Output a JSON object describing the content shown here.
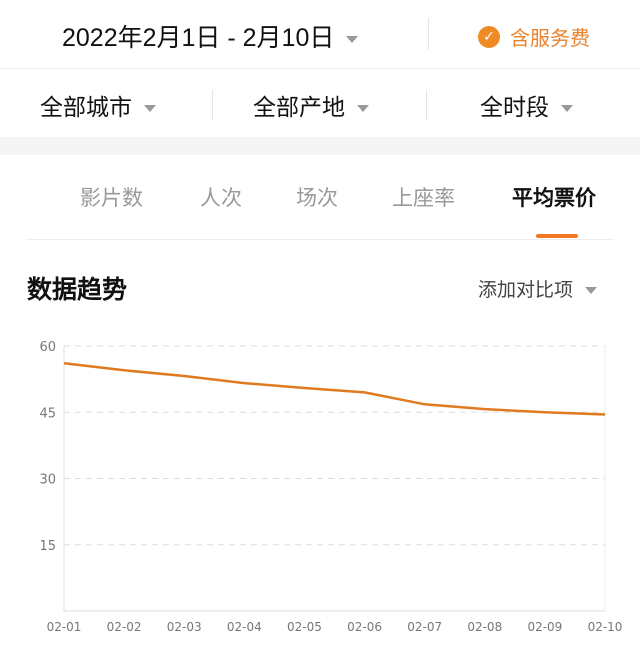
{
  "header": {
    "date_range": "2022年2月1日 - 2月10日",
    "service_fee_label": "含服务费",
    "service_fee_checked": true,
    "accent": "#f08a24"
  },
  "filters": [
    {
      "label": "全部城市"
    },
    {
      "label": "全部产地"
    },
    {
      "label": "全时段"
    }
  ],
  "tabs": [
    {
      "label": "影片数"
    },
    {
      "label": "人次"
    },
    {
      "label": "场次"
    },
    {
      "label": "上座率"
    },
    {
      "label": "平均票价",
      "active": true
    }
  ],
  "section": {
    "title": "数据趋势",
    "add_compare": "添加对比项"
  },
  "chart_data": {
    "type": "line",
    "categories": [
      "02-01",
      "02-02",
      "02-03",
      "02-04",
      "02-05",
      "02-06",
      "02-07",
      "02-08",
      "02-09",
      "02-10"
    ],
    "values": [
      56.1,
      54.5,
      53.2,
      51.6,
      50.5,
      49.5,
      46.8,
      45.7,
      45.0,
      44.5
    ],
    "ylim": [
      0,
      60
    ],
    "yticks": [
      "15",
      "30",
      "45",
      "60"
    ],
    "grid": true,
    "color": "#e07a1f"
  }
}
